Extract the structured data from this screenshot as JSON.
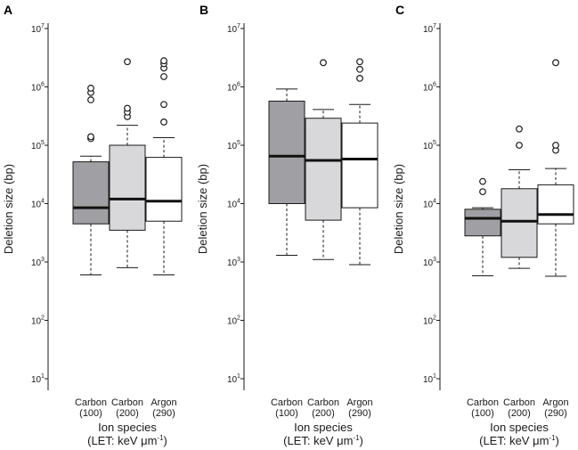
{
  "chart_data": [
    {
      "type": "box",
      "panel": "A",
      "ylabel": "Deletion size (bp)",
      "xlabel": "Ion species",
      "xlabel_line2": "(LET: keV μm",
      "xlabel_sup": "-1",
      "xlabel_close": ")",
      "yscale": "log10",
      "ylim": [
        1,
        7
      ],
      "yticks": [
        {
          "base": "10",
          "exp": "1",
          "value": 1
        },
        {
          "base": "10",
          "exp": "2",
          "value": 2
        },
        {
          "base": "10",
          "exp": "3",
          "value": 3
        },
        {
          "base": "10",
          "exp": "4",
          "value": 4
        },
        {
          "base": "10",
          "exp": "5",
          "value": 5
        },
        {
          "base": "10",
          "exp": "6",
          "value": 6
        },
        {
          "base": "10",
          "exp": "7",
          "value": 7
        }
      ],
      "categories": [
        {
          "name": "Carbon",
          "let": "(100)",
          "color": "#a0a0a4",
          "whisker_low": 600,
          "q1": 4500,
          "median": 8500,
          "q3": 52000,
          "whisker_high": 65000,
          "outliers": [
            130000,
            140000,
            600000,
            800000,
            950000
          ]
        },
        {
          "name": "Carbon",
          "let": "(200)",
          "color": "#d8d8da",
          "whisker_low": 800,
          "q1": 3500,
          "median": 12000,
          "q3": 100000,
          "whisker_high": 220000,
          "outliers": [
            310000,
            370000,
            430000,
            2700000
          ]
        },
        {
          "name": "Argon",
          "let": "(290)",
          "color": "#ffffff",
          "whisker_low": 600,
          "q1": 5000,
          "median": 11000,
          "q3": 62000,
          "whisker_high": 135000,
          "outliers": [
            250000,
            500000,
            1500000,
            2100000,
            2500000,
            2800000
          ]
        }
      ]
    },
    {
      "type": "box",
      "panel": "B",
      "ylabel": "Deletion size (bp)",
      "xlabel": "Ion species",
      "xlabel_line2": "(LET: keV μm",
      "xlabel_sup": "-1",
      "xlabel_close": ")",
      "yscale": "log10",
      "ylim": [
        1,
        7
      ],
      "yticks": [
        {
          "base": "10",
          "exp": "1",
          "value": 1
        },
        {
          "base": "10",
          "exp": "2",
          "value": 2
        },
        {
          "base": "10",
          "exp": "3",
          "value": 3
        },
        {
          "base": "10",
          "exp": "4",
          "value": 4
        },
        {
          "base": "10",
          "exp": "5",
          "value": 5
        },
        {
          "base": "10",
          "exp": "6",
          "value": 6
        },
        {
          "base": "10",
          "exp": "7",
          "value": 7
        }
      ],
      "categories": [
        {
          "name": "Carbon",
          "let": "(100)",
          "color": "#a0a0a4",
          "whisker_low": 1300,
          "q1": 10000,
          "median": 65000,
          "q3": 570000,
          "whisker_high": 920000,
          "outliers": []
        },
        {
          "name": "Carbon",
          "let": "(200)",
          "color": "#d8d8da",
          "whisker_low": 1100,
          "q1": 5200,
          "median": 55000,
          "q3": 290000,
          "whisker_high": 410000,
          "outliers": [
            2600000
          ]
        },
        {
          "name": "Argon",
          "let": "(290)",
          "color": "#ffffff",
          "whisker_low": 900,
          "q1": 8500,
          "median": 58000,
          "q3": 240000,
          "whisker_high": 500000,
          "outliers": [
            1400000,
            2000000,
            2700000
          ]
        }
      ]
    },
    {
      "type": "box",
      "panel": "C",
      "ylabel": "Deletion size (bp)",
      "xlabel": "Ion species",
      "xlabel_line2": "(LET: keV μm",
      "xlabel_sup": "-1",
      "xlabel_close": ")",
      "yscale": "log10",
      "ylim": [
        1,
        7
      ],
      "yticks": [
        {
          "base": "10",
          "exp": "1",
          "value": 1
        },
        {
          "base": "10",
          "exp": "2",
          "value": 2
        },
        {
          "base": "10",
          "exp": "3",
          "value": 3
        },
        {
          "base": "10",
          "exp": "4",
          "value": 4
        },
        {
          "base": "10",
          "exp": "5",
          "value": 5
        },
        {
          "base": "10",
          "exp": "6",
          "value": 6
        },
        {
          "base": "10",
          "exp": "7",
          "value": 7
        }
      ],
      "categories": [
        {
          "name": "Carbon",
          "let": "(100)",
          "color": "#a0a0a4",
          "whisker_low": 580,
          "q1": 2800,
          "median": 5600,
          "q3": 8000,
          "whisker_high": 8500,
          "outliers": [
            16000,
            24000
          ]
        },
        {
          "name": "Carbon",
          "let": "(200)",
          "color": "#d8d8da",
          "whisker_low": 780,
          "q1": 1200,
          "median": 5000,
          "q3": 18000,
          "whisker_high": 38000,
          "outliers": [
            100000,
            190000
          ]
        },
        {
          "name": "Argon",
          "let": "(290)",
          "color": "#ffffff",
          "whisker_low": 570,
          "q1": 4500,
          "median": 6500,
          "q3": 21000,
          "whisker_high": 40000,
          "outliers": [
            82000,
            100000,
            2600000
          ]
        }
      ]
    }
  ]
}
